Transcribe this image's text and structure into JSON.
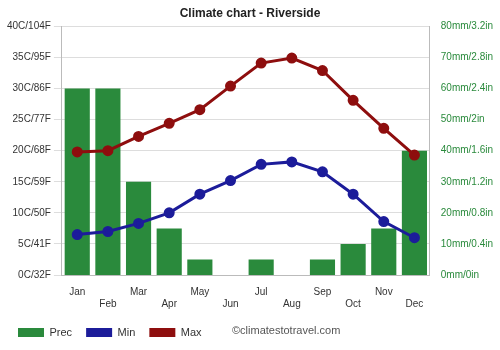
{
  "chart_data": {
    "type": "bar",
    "title": "Climate chart - Riverside",
    "categories": [
      "Jan",
      "Feb",
      "Mar",
      "Apr",
      "May",
      "Jun",
      "Jul",
      "Aug",
      "Sep",
      "Oct",
      "Nov",
      "Dec"
    ],
    "series": [
      {
        "name": "Prec",
        "type": "bar",
        "axis": "y2",
        "color": "#2a8a3c",
        "values": [
          60,
          60,
          30,
          15,
          5,
          0,
          5,
          0,
          5,
          10,
          15,
          40
        ]
      },
      {
        "name": "Min",
        "type": "line",
        "marker": "circle",
        "color": "#1c1c9a",
        "values": [
          6.5,
          7,
          8.3,
          10,
          13,
          15.2,
          17.8,
          18.2,
          16.6,
          13,
          8.6,
          6
        ]
      },
      {
        "name": "Max",
        "type": "line",
        "marker": "circle",
        "color": "#8e0e0e",
        "values": [
          19.8,
          20,
          22.3,
          24.4,
          26.6,
          30.4,
          34.1,
          34.9,
          32.9,
          28.1,
          23.6,
          19.3
        ]
      }
    ],
    "ylim": [
      0,
      40
    ],
    "yticks": [
      {
        "value": 0,
        "label": "0C/32F"
      },
      {
        "value": 5,
        "label": "5C/41F"
      },
      {
        "value": 10,
        "label": "10C/50F"
      },
      {
        "value": 15,
        "label": "15C/59F"
      },
      {
        "value": 20,
        "label": "20C/68F"
      },
      {
        "value": 25,
        "label": "25C/77F"
      },
      {
        "value": 30,
        "label": "30C/86F"
      },
      {
        "value": 35,
        "label": "35C/95F"
      },
      {
        "value": 40,
        "label": "40C/104F"
      }
    ],
    "y2lim": [
      0,
      80
    ],
    "y2ticks": [
      {
        "value": 0,
        "label": "0mm/0in"
      },
      {
        "value": 10,
        "label": "10mm/0.4in"
      },
      {
        "value": 20,
        "label": "20mm/0.8in"
      },
      {
        "value": 30,
        "label": "30mm/1.2in"
      },
      {
        "value": 40,
        "label": "40mm/1.6in"
      },
      {
        "value": 50,
        "label": "50mm/2in"
      },
      {
        "value": 60,
        "label": "60mm/2.4in"
      },
      {
        "value": 70,
        "label": "70mm/2.8in"
      },
      {
        "value": 80,
        "label": "80mm/3.2in"
      }
    ],
    "grid": true,
    "legend": "bottom",
    "annotations": [
      "©climatestotravel.com"
    ]
  }
}
